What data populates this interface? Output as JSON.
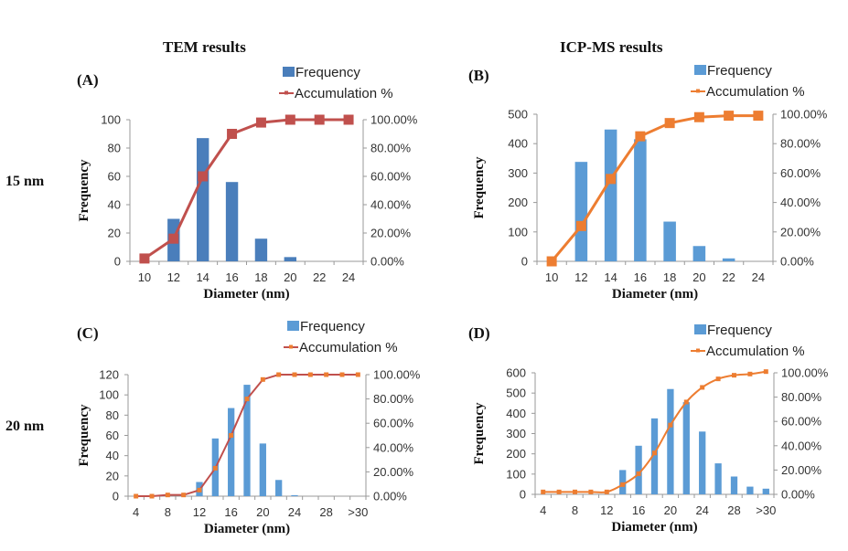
{
  "figure": {
    "col_titles": [
      "TEM results",
      "ICP-MS results"
    ],
    "row_labels": [
      "15 nm",
      "20 nm"
    ]
  },
  "chart_data": [
    {
      "type": "bar",
      "panel_label": "(A)",
      "xlabel": "Diameter (nm)",
      "ylabel": "Frequency",
      "categories": [
        "10",
        "12",
        "14",
        "16",
        "18",
        "20",
        "22",
        "24"
      ],
      "tick_labels": [
        "10",
        "12",
        "14",
        "16",
        "18",
        "20",
        "22",
        "24"
      ],
      "ylim": [
        0,
        100
      ],
      "yticks": [
        0,
        20,
        40,
        60,
        80,
        100
      ],
      "y2lim": [
        0,
        100
      ],
      "y2ticks": [
        "0.00%",
        "20.00%",
        "40.00%",
        "60.00%",
        "80.00%",
        "100.00%"
      ],
      "legend": [
        "Frequency",
        "Accumulation %"
      ],
      "legend_position": "top-right",
      "series": [
        {
          "name": "Frequency",
          "type": "bar",
          "color": "#4a7ebb",
          "values": [
            0,
            30,
            87,
            56,
            16,
            3,
            0,
            0
          ]
        },
        {
          "name": "Accumulation %",
          "type": "line",
          "axis": "right",
          "color": "#c0504d",
          "marker": "square-large",
          "values": [
            2,
            16,
            60,
            90,
            98,
            100,
            100,
            100
          ]
        }
      ]
    },
    {
      "type": "bar",
      "panel_label": "(B)",
      "xlabel": "Diameter (nm)",
      "ylabel": "Frequency",
      "categories": [
        "10",
        "12",
        "14",
        "16",
        "18",
        "20",
        "22",
        "24"
      ],
      "tick_labels": [
        "10",
        "12",
        "14",
        "16",
        "18",
        "20",
        "22",
        "24"
      ],
      "ylim": [
        0,
        500
      ],
      "yticks": [
        0,
        100,
        200,
        300,
        400,
        500
      ],
      "y2lim": [
        0,
        100
      ],
      "y2ticks": [
        "0.00%",
        "20.00%",
        "40.00%",
        "60.00%",
        "80.00%",
        "100.00%"
      ],
      "legend": [
        "Frequency",
        "Accumulation %"
      ],
      "legend_position": "top-right",
      "series": [
        {
          "name": "Frequency",
          "type": "bar",
          "color": "#5b9bd5",
          "values": [
            0,
            338,
            448,
            415,
            135,
            52,
            10,
            0
          ]
        },
        {
          "name": "Accumulation %",
          "type": "line",
          "axis": "right",
          "color": "#ed7d31",
          "marker": "square-large",
          "values": [
            0,
            24,
            56,
            85,
            94,
            98,
            99,
            99
          ]
        }
      ]
    },
    {
      "type": "bar",
      "panel_label": "(C)",
      "xlabel": "Diameter (nm)",
      "ylabel": "Frequency",
      "categories": [
        "4",
        "6",
        "8",
        "10",
        "12",
        "14",
        "16",
        "18",
        "20",
        "22",
        "24",
        "26",
        "28",
        "30",
        ">30"
      ],
      "tick_labels": [
        "4",
        "",
        "8",
        "",
        "12",
        "",
        "16",
        "",
        "20",
        "",
        "24",
        "",
        "28",
        "",
        ">30"
      ],
      "ylim": [
        0,
        120
      ],
      "yticks": [
        0,
        20,
        40,
        60,
        80,
        100,
        120
      ],
      "y2lim": [
        0,
        100
      ],
      "y2ticks": [
        "0.00%",
        "20.00%",
        "40.00%",
        "60.00%",
        "80.00%",
        "100.00%"
      ],
      "legend": [
        "Frequency",
        "Accumulation %"
      ],
      "legend_position": "top-right",
      "series": [
        {
          "name": "Frequency",
          "type": "bar",
          "color": "#5b9bd5",
          "values": [
            0,
            0,
            0,
            0,
            14,
            57,
            87,
            110,
            52,
            16,
            1,
            0,
            0,
            0,
            0
          ]
        },
        {
          "name": "Accumulation %",
          "type": "line",
          "axis": "right",
          "color": "#c0504d",
          "marker_color": "#ed7d31",
          "marker": "square-small",
          "values": [
            0,
            0,
            1,
            1,
            5,
            23,
            50,
            80,
            96,
            100,
            100,
            100,
            100,
            100,
            100
          ]
        }
      ]
    },
    {
      "type": "bar",
      "panel_label": "(D)",
      "xlabel": "Diameter (nm)",
      "ylabel": "Frequency",
      "categories": [
        "4",
        "6",
        "8",
        "10",
        "12",
        "14",
        "16",
        "18",
        "20",
        "22",
        "24",
        "26",
        "28",
        "30",
        ">30"
      ],
      "tick_labels": [
        "4",
        "",
        "8",
        "",
        "12",
        "",
        "16",
        "",
        "20",
        "",
        "24",
        "",
        "28",
        "",
        ">30"
      ],
      "ylim": [
        0,
        600
      ],
      "yticks": [
        0,
        100,
        200,
        300,
        400,
        500,
        600
      ],
      "y2lim": [
        0,
        100
      ],
      "y2ticks": [
        "0.00%",
        "20.00%",
        "40.00%",
        "60.00%",
        "80.00%",
        "100.00%"
      ],
      "legend": [
        "Frequency",
        "Accumulation %"
      ],
      "legend_position": "top-right",
      "series": [
        {
          "name": "Frequency",
          "type": "bar",
          "color": "#5b9bd5",
          "values": [
            0,
            0,
            0,
            0,
            0,
            120,
            240,
            375,
            520,
            455,
            310,
            153,
            88,
            38,
            28
          ]
        },
        {
          "name": "Accumulation %",
          "type": "line",
          "axis": "right",
          "color": "#ed7d31",
          "marker": "square-small",
          "smooth": true,
          "values": [
            2,
            2,
            2,
            2,
            2,
            8,
            17,
            34,
            57,
            76,
            88,
            95,
            98,
            99,
            101
          ]
        }
      ]
    }
  ]
}
